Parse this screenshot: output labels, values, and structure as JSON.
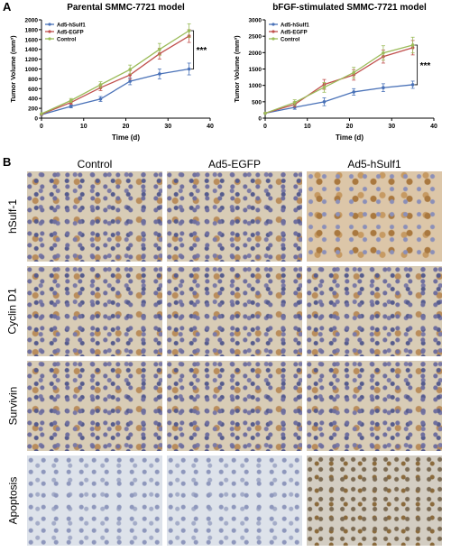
{
  "panel_a_label": "A",
  "panel_b_label": "B",
  "chart_data": [
    {
      "type": "line",
      "title": "Parental SMMC-7721 model",
      "xlabel": "Time (d)",
      "ylabel": "Tumor Volume (mm³)",
      "xlim": [
        0,
        40
      ],
      "ylim": [
        0,
        2000
      ],
      "xticks": [
        "0",
        "10",
        "20",
        "30",
        "40"
      ],
      "yticks": [
        "0",
        "200",
        "400",
        "600",
        "800",
        "1000",
        "1200",
        "1400",
        "1600",
        "1800",
        "2000"
      ],
      "x": [
        0,
        7,
        14,
        21,
        28,
        35
      ],
      "legend_position": "top-left",
      "significance": "***",
      "series": [
        {
          "name": "Ad5-hSulf1",
          "color": "#4a72b8",
          "values": [
            70,
            240,
            390,
            750,
            900,
            1000
          ],
          "err": [
            0,
            30,
            50,
            70,
            100,
            120
          ]
        },
        {
          "name": "Ad5-EGFP",
          "color": "#c0504d",
          "values": [
            80,
            320,
            620,
            880,
            1310,
            1670
          ],
          "err": [
            0,
            40,
            60,
            90,
            110,
            130
          ]
        },
        {
          "name": "Control",
          "color": "#9bbb59",
          "values": [
            90,
            360,
            680,
            990,
            1400,
            1780
          ],
          "err": [
            0,
            40,
            60,
            90,
            120,
            140
          ]
        }
      ]
    },
    {
      "type": "line",
      "title": "bFGF-stimulated SMMC-7721 model",
      "xlabel": "Time (d)",
      "ylabel": "Tumor Volume (mm³)",
      "xlim": [
        0,
        40
      ],
      "ylim": [
        0,
        3000
      ],
      "xticks": [
        "0",
        "10",
        "20",
        "30",
        "40"
      ],
      "yticks": [
        "0",
        "500",
        "1000",
        "1500",
        "2000",
        "2500",
        "3000"
      ],
      "x": [
        0,
        7,
        14,
        21,
        28,
        35
      ],
      "legend_position": "top-left",
      "significance": "***",
      "series": [
        {
          "name": "Ad5-hSulf1",
          "color": "#4a72b8",
          "values": [
            150,
            330,
            500,
            800,
            930,
            1020
          ],
          "err": [
            0,
            60,
            120,
            100,
            120,
            110
          ]
        },
        {
          "name": "Ad5-EGFP",
          "color": "#c0504d",
          "values": [
            150,
            420,
            1030,
            1320,
            1880,
            2150
          ],
          "err": [
            0,
            80,
            150,
            160,
            200,
            220
          ]
        },
        {
          "name": "Control",
          "color": "#9bbb59",
          "values": [
            150,
            480,
            940,
            1390,
            1990,
            2230
          ],
          "err": [
            0,
            80,
            150,
            160,
            220,
            240
          ]
        }
      ]
    }
  ],
  "panel_b": {
    "columns": [
      "Control",
      "Ad5-EGFP",
      "Ad5-hSulf1"
    ],
    "rows": [
      "hSulf-1",
      "Cyclin D1",
      "Survivin",
      "Apoptosis"
    ]
  }
}
